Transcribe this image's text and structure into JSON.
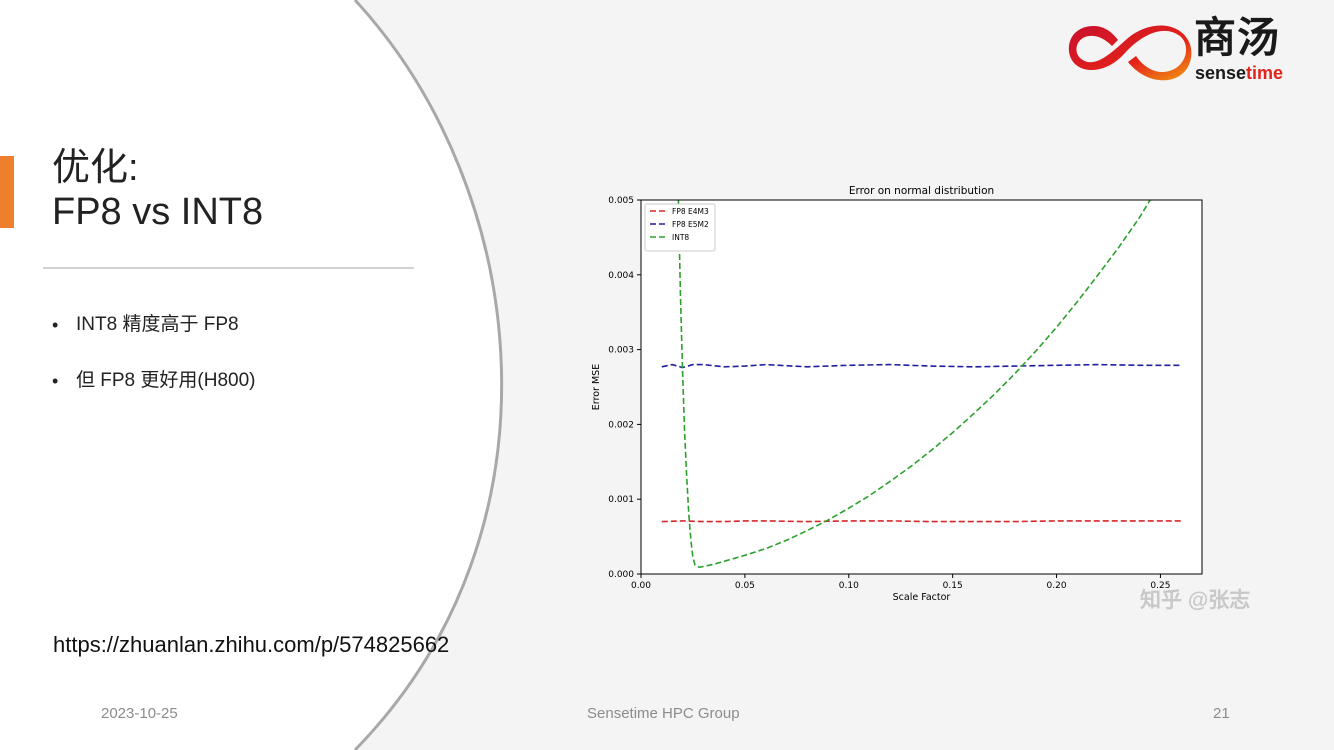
{
  "slide": {
    "title_line1": "优化:",
    "title_line2": "FP8 vs INT8",
    "bullets": [
      "INT8 精度高于 FP8",
      "但 FP8 更好用(H800)"
    ],
    "link": "https://zhuanlan.zhihu.com/p/574825662",
    "accent_color": "#ee7f2d"
  },
  "logo": {
    "cn": "商汤",
    "en_prefix": "sense",
    "en_highlight": "time"
  },
  "footer": {
    "date": "2023-10-25",
    "group": "Sensetime HPC Group",
    "page": "21"
  },
  "watermark": "知乎 @张志",
  "chart_data": {
    "type": "line",
    "title": "Error on normal distribution",
    "xlabel": "Scale Factor",
    "ylabel": "Error MSE",
    "xlim": [
      0.0,
      0.27
    ],
    "ylim": [
      0.0,
      0.005
    ],
    "xticks": [
      0.0,
      0.05,
      0.1,
      0.15,
      0.2,
      0.25
    ],
    "xtick_labels": [
      "0.00",
      "0.05",
      "0.10",
      "0.15",
      "0.20",
      "0.25"
    ],
    "yticks": [
      0.0,
      0.001,
      0.002,
      0.003,
      0.004,
      0.005
    ],
    "ytick_labels": [
      "0.000",
      "0.001",
      "0.002",
      "0.003",
      "0.004",
      "0.005"
    ],
    "grid": false,
    "legend": "top-left",
    "series": [
      {
        "name": "FP8 E4M3",
        "color": "#d62728",
        "dash": "dashed",
        "x": [
          0.01,
          0.02,
          0.03,
          0.04,
          0.05,
          0.06,
          0.08,
          0.1,
          0.12,
          0.14,
          0.16,
          0.18,
          0.2,
          0.22,
          0.24,
          0.26
        ],
        "y": [
          0.0007,
          0.00071,
          0.0007,
          0.0007,
          0.00071,
          0.00071,
          0.0007,
          0.00071,
          0.00071,
          0.0007,
          0.0007,
          0.0007,
          0.00071,
          0.00071,
          0.00071,
          0.00071
        ]
      },
      {
        "name": "FP8 E5M2",
        "color": "#1f1fa0",
        "dash": "dashed",
        "x": [
          0.01,
          0.015,
          0.02,
          0.025,
          0.03,
          0.04,
          0.05,
          0.06,
          0.08,
          0.1,
          0.12,
          0.14,
          0.16,
          0.18,
          0.2,
          0.22,
          0.24,
          0.26
        ],
        "y": [
          0.00277,
          0.0028,
          0.00276,
          0.0028,
          0.0028,
          0.00277,
          0.00278,
          0.0028,
          0.00277,
          0.00279,
          0.0028,
          0.00278,
          0.00277,
          0.00278,
          0.00279,
          0.0028,
          0.00279,
          0.00279
        ]
      },
      {
        "name": "INT8",
        "color": "#2ca02c",
        "dash": "dashed",
        "x": [
          0.018,
          0.019,
          0.02,
          0.021,
          0.022,
          0.023,
          0.024,
          0.025,
          0.026,
          0.028,
          0.03,
          0.035,
          0.04,
          0.05,
          0.06,
          0.07,
          0.08,
          0.09,
          0.1,
          0.11,
          0.12,
          0.13,
          0.14,
          0.15,
          0.16,
          0.17,
          0.18,
          0.19,
          0.2,
          0.21,
          0.22,
          0.23,
          0.24,
          0.245
        ],
        "y": [
          0.005,
          0.0037,
          0.0027,
          0.0019,
          0.0013,
          0.0008,
          0.00045,
          0.00022,
          0.00012,
          9e-05,
          0.0001,
          0.00013,
          0.00017,
          0.00025,
          0.00034,
          0.00045,
          0.00058,
          0.00072,
          0.00088,
          0.00105,
          0.00124,
          0.00144,
          0.00166,
          0.00189,
          0.00214,
          0.0024,
          0.00268,
          0.00298,
          0.0033,
          0.00364,
          0.004,
          0.00437,
          0.00477,
          0.005
        ]
      }
    ]
  }
}
